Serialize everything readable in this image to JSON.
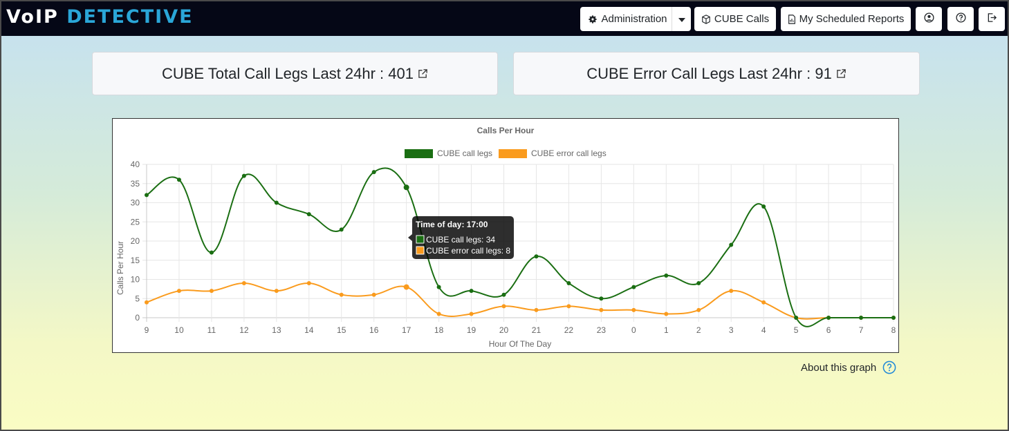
{
  "header": {
    "logo": {
      "part1": "VoIP",
      "part2": "DETECTIVE"
    },
    "nav": {
      "administration": "Administration",
      "cube_calls": "CUBE Calls",
      "scheduled_reports": "My Scheduled Reports"
    },
    "icons": [
      "gear-icon",
      "caret-down-icon",
      "cube-icon",
      "report-icon",
      "user-icon",
      "help-icon",
      "logout-icon"
    ]
  },
  "stats": {
    "total": {
      "label": "CUBE Total Call Legs Last 24hr : ",
      "value": "401"
    },
    "error": {
      "label": "CUBE Error Call Legs Last 24hr : ",
      "value": "91"
    }
  },
  "chart_data": {
    "type": "line",
    "title": "Calls Per Hour",
    "xlabel": "Hour Of The Day",
    "ylabel": "Calls Per Hour",
    "categories": [
      "9",
      "10",
      "11",
      "12",
      "13",
      "14",
      "15",
      "16",
      "17",
      "18",
      "19",
      "20",
      "21",
      "22",
      "23",
      "0",
      "1",
      "2",
      "3",
      "4",
      "5",
      "6",
      "7",
      "8"
    ],
    "ylim": [
      0,
      40
    ],
    "yticks": [
      0,
      5,
      10,
      15,
      20,
      25,
      30,
      35,
      40
    ],
    "grid": true,
    "legend_position": "top",
    "series": [
      {
        "name": "CUBE call legs",
        "color": "#1a6e12",
        "values": [
          32,
          36,
          17,
          37,
          30,
          27,
          23,
          38,
          34,
          8,
          7,
          6,
          16,
          9,
          5,
          8,
          11,
          9,
          19,
          29,
          0,
          0,
          0,
          0
        ]
      },
      {
        "name": "CUBE error call legs",
        "color": "#fa9b1d",
        "values": [
          4,
          7,
          7,
          9,
          7,
          9,
          6,
          6,
          8,
          1,
          1,
          3,
          2,
          3,
          2,
          2,
          1,
          2,
          7,
          4,
          0,
          0,
          0,
          0
        ]
      }
    ],
    "tooltip": {
      "title": "Time of day: 17:00",
      "lines": [
        "CUBE call legs: 34",
        "CUBE error call legs: 8"
      ]
    }
  },
  "footer": {
    "about_label": "About this graph"
  }
}
